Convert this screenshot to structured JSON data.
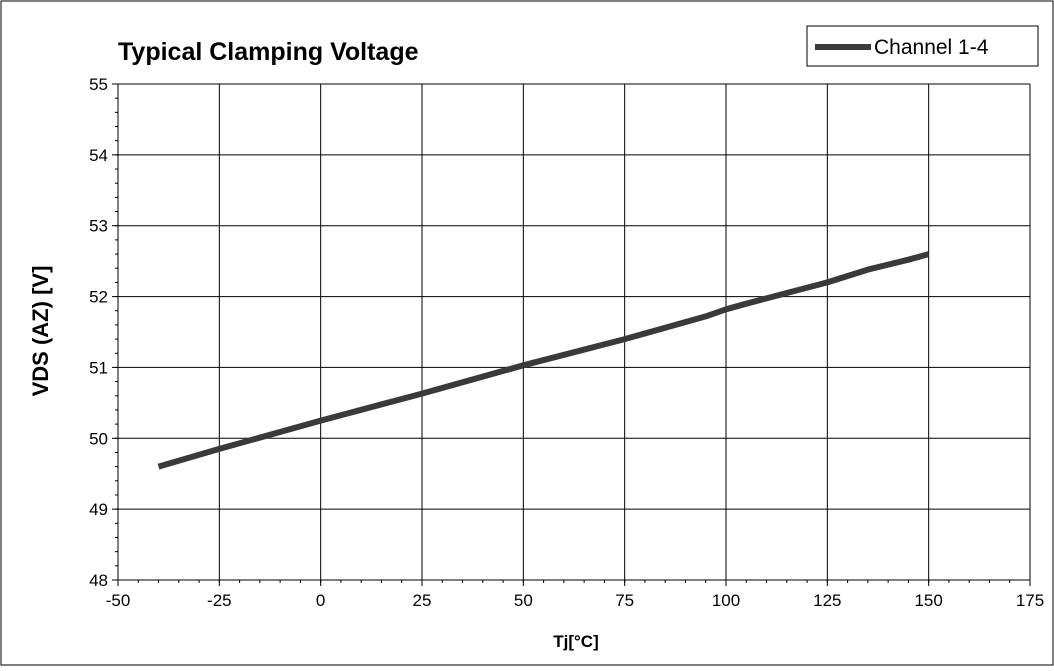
{
  "chart_data": {
    "type": "line",
    "title": "Typical Clamping Voltage",
    "xlabel": "Tj[°C]",
    "ylabel": "VDS (AZ) [V]",
    "xlim": [
      -50,
      175
    ],
    "ylim": [
      48,
      55
    ],
    "x_ticks": [
      "-50",
      "-25",
      "0",
      "25",
      "50",
      "75",
      "100",
      "125",
      "150",
      "175"
    ],
    "y_ticks": [
      "48",
      "49",
      "50",
      "51",
      "52",
      "53",
      "54",
      "55"
    ],
    "grid": true,
    "legend_position": "top-right",
    "series": [
      {
        "name": "Channel 1-4",
        "color": "#3a3a3a",
        "x": [
          -40,
          -25,
          0,
          25,
          50,
          75,
          95,
          100,
          105,
          115,
          125,
          135,
          145,
          150
        ],
        "y": [
          49.6,
          49.85,
          50.25,
          50.63,
          51.03,
          51.4,
          51.72,
          51.82,
          51.9,
          52.05,
          52.2,
          52.38,
          52.52,
          52.6
        ]
      }
    ]
  }
}
